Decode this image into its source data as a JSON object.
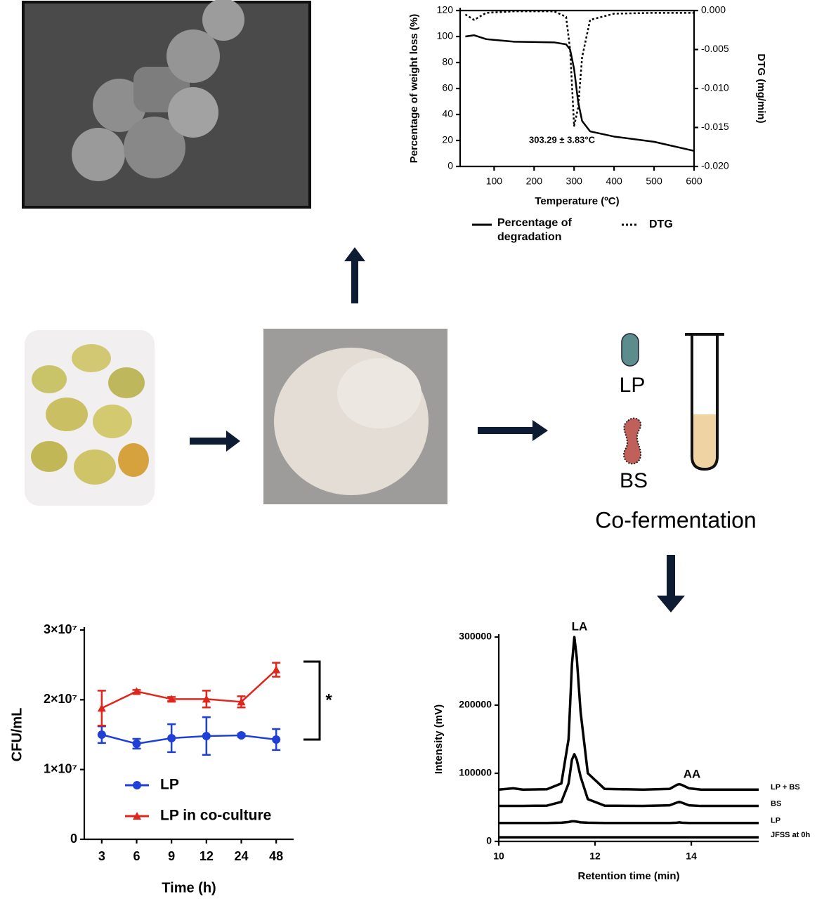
{
  "chart_data": [
    {
      "type": "line",
      "x_label": "Temperature (ºC)",
      "y_label": "Percentage of weight loss (%)",
      "y2_label": "DTG (mg/min)",
      "annotation": "303.29 ± 3.83°C",
      "x": [
        28,
        50,
        80,
        150,
        250,
        280,
        290,
        300,
        310,
        320,
        340,
        400,
        500,
        600
      ],
      "series": [
        {
          "name": "Percentage of degradation",
          "color": "#000000",
          "dash": "solid",
          "values": [
            100,
            101,
            98,
            96,
            95.5,
            94,
            90,
            75,
            50,
            35,
            27,
            23,
            19,
            12
          ]
        },
        {
          "name": "DTG",
          "color": "#000000",
          "dash": "dotted",
          "axis": "y2",
          "values": [
            -0.0005,
            -0.0012,
            -0.0003,
            -0.0001,
            -0.0001,
            -0.0008,
            -0.005,
            -0.0148,
            -0.0125,
            -0.006,
            -0.0012,
            -0.0004,
            -0.0003,
            -0.0003
          ]
        }
      ],
      "xlim": [
        15,
        600
      ],
      "xticks": [
        100,
        200,
        300,
        400,
        500,
        600
      ],
      "ylim": [
        0,
        120
      ],
      "yticks": [
        0,
        20,
        40,
        60,
        80,
        100,
        120
      ],
      "y2lim": [
        -0.02,
        0
      ],
      "y2ticks": [
        {
          "value": -0.02,
          "label": "-0.020"
        },
        -0.015,
        {
          "value": -0.01,
          "label": "-0.010"
        },
        -0.005,
        {
          "value": 0,
          "label": "0.000"
        }
      ]
    },
    {
      "type": "line",
      "x_label": "Time (h)",
      "y_label": "CFU/mL",
      "annotation": "*",
      "categories": [
        "3",
        "6",
        "9",
        "12",
        "24",
        "48"
      ],
      "series": [
        {
          "name": "LP",
          "color": "#1f3fd6",
          "marker": "circle",
          "values": [
            15000000,
            13700000,
            14500000,
            14800000,
            14900000,
            14300000
          ],
          "errors": [
            1200000,
            700000,
            2000000,
            2700000,
            200000,
            1500000
          ]
        },
        {
          "name": "LP in co-culture",
          "color": "#e0251b",
          "marker": "triangle",
          "values": [
            18800000,
            21200000,
            20100000,
            20100000,
            19700000,
            24300000
          ],
          "errors": [
            2500000,
            200000,
            300000,
            1200000,
            800000,
            1000000
          ]
        }
      ],
      "ylim": [
        0,
        30000000
      ],
      "yticks": [
        0,
        {
          "value": 10000000,
          "label": "1×10⁷"
        },
        {
          "value": 20000000,
          "label": "2×10⁷"
        },
        {
          "value": 30000000,
          "label": "3×10⁷"
        }
      ]
    },
    {
      "type": "line",
      "x_label": "Retention time (min)",
      "y_label": "Intensity (mV)",
      "annotations": [
        "LA",
        "AA"
      ],
      "x": [
        10,
        10.3,
        10.5,
        11,
        11.3,
        11.45,
        11.52,
        11.57,
        11.62,
        11.7,
        11.85,
        12.2,
        13,
        13.55,
        13.7,
        13.75,
        13.8,
        13.95,
        14.2,
        15.4
      ],
      "series": [
        {
          "name": "LP + BS",
          "color": "#000000",
          "values": [
            76000,
            78000,
            76000,
            76500,
            85000,
            150000,
            260000,
            300000,
            270000,
            190000,
            100000,
            77000,
            76000,
            77000,
            83000,
            84000,
            83000,
            78000,
            76000,
            76000
          ]
        },
        {
          "name": "BS",
          "color": "#000000",
          "values": [
            52000,
            52000,
            52000,
            52500,
            58000,
            85000,
            120000,
            128000,
            120000,
            95000,
            62000,
            52500,
            52000,
            53000,
            57000,
            58000,
            57000,
            53000,
            52000,
            52000
          ]
        },
        {
          "name": "LP",
          "color": "#000000",
          "values": [
            27000,
            27000,
            27000,
            27000,
            27500,
            28500,
            29500,
            29500,
            29000,
            28000,
            27500,
            27000,
            27000,
            27000,
            27500,
            28000,
            27500,
            27000,
            27000,
            27000
          ]
        },
        {
          "name": "JFSS at 0h",
          "color": "#000000",
          "values": [
            6000,
            6000,
            6000,
            6000,
            6000,
            6000,
            6000,
            6000,
            6000,
            6000,
            6000,
            6000,
            6000,
            6000,
            6000,
            6000,
            6000,
            6000,
            6000,
            6000
          ]
        }
      ],
      "xlim": [
        10,
        15.4
      ],
      "xticks": [
        10,
        12,
        14
      ],
      "ylim": [
        0,
        300000
      ],
      "yticks": [
        0,
        100000,
        200000,
        300000
      ]
    }
  ],
  "diagram": {
    "labels": [
      "LP",
      "BS",
      "Co-fermentation"
    ]
  }
}
